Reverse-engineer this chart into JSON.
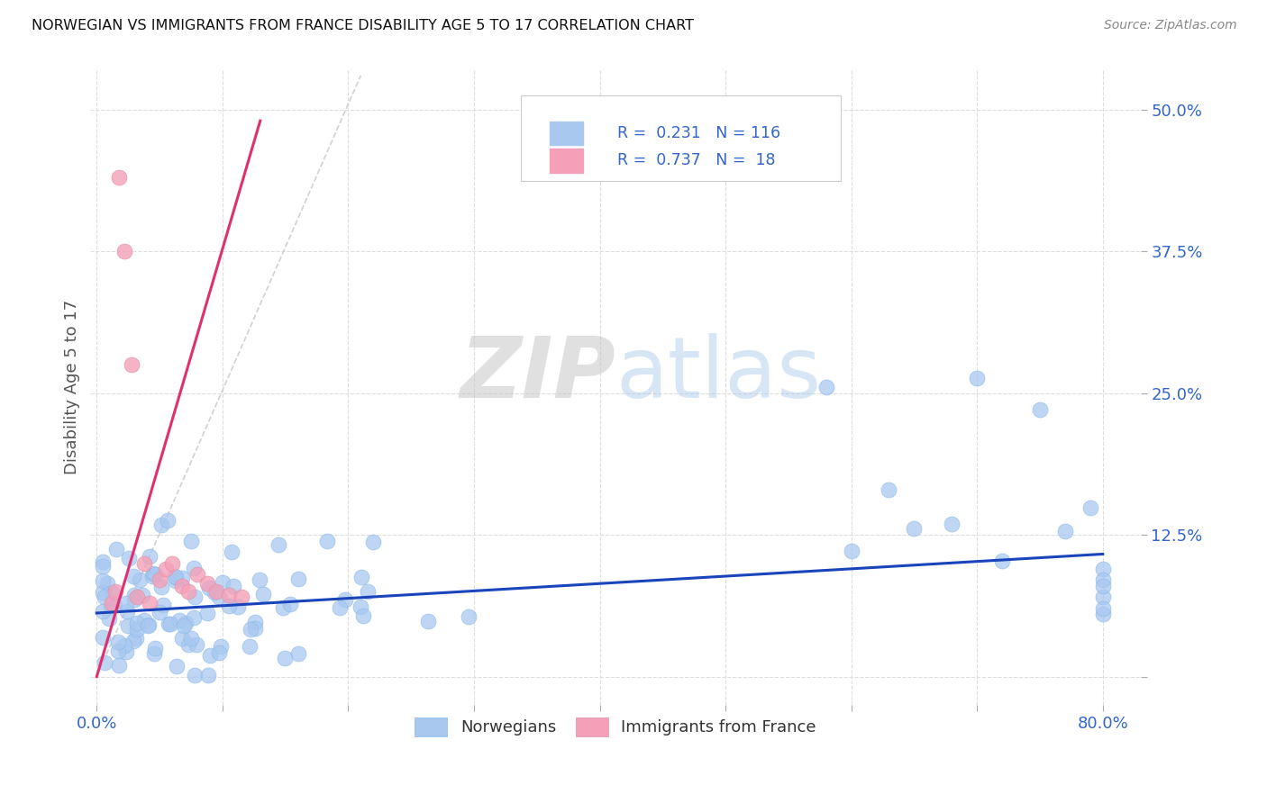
{
  "title": "NORWEGIAN VS IMMIGRANTS FROM FRANCE DISABILITY AGE 5 TO 17 CORRELATION CHART",
  "source": "Source: ZipAtlas.com",
  "ylabel": "Disability Age 5 to 17",
  "xlim": [
    -0.005,
    0.83
  ],
  "ylim": [
    -0.025,
    0.535
  ],
  "xticks": [
    0.0,
    0.1,
    0.2,
    0.3,
    0.4,
    0.5,
    0.6,
    0.7,
    0.8
  ],
  "yticks": [
    0.0,
    0.125,
    0.25,
    0.375,
    0.5
  ],
  "R_norwegian": 0.231,
  "N_norwegian": 116,
  "R_france": 0.737,
  "N_france": 18,
  "norwegian_color": "#a8c8f0",
  "france_color": "#f4a0b8",
  "norwegian_line_color": "#1a44bb",
  "france_line_color": "#e03070",
  "ref_line_color": "#cccccc",
  "watermark_zip": "ZIP",
  "watermark_atlas": "atlas",
  "legend_text_color": "#3366cc",
  "background_color": "#ffffff",
  "grid_color": "#dddddd",
  "seed": 77,
  "nor_intercept": 0.055,
  "nor_slope": 0.068,
  "fra_intercept": -0.02,
  "fra_slope": 3.8
}
